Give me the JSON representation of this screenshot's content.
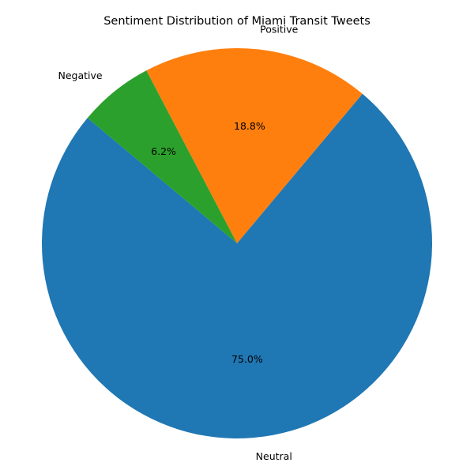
{
  "chart_data": {
    "type": "pie",
    "title": "Sentiment Distribution of Miami Transit Tweets",
    "start_angle_deg": 140,
    "direction": "counterclockwise",
    "slices": [
      {
        "label": "Neutral",
        "value": 75.0,
        "pct_label": "75.0%",
        "color": "#1f77b4"
      },
      {
        "label": "Positive",
        "value": 18.8,
        "pct_label": "18.8%",
        "color": "#ff7f0e"
      },
      {
        "label": "Negative",
        "value": 6.2,
        "pct_label": "6.2%",
        "color": "#2ca02c"
      }
    ]
  }
}
